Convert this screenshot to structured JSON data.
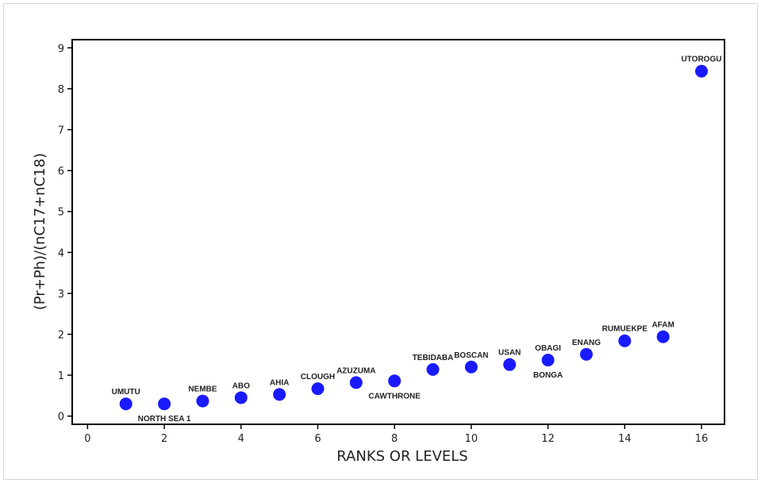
{
  "chart_data": {
    "type": "scatter",
    "xlabel": "RANKS OR LEVELS",
    "ylabel": "(Pr+Ph)/(nC17+nC18)",
    "xlim": [
      -0.4,
      16.6
    ],
    "ylim": [
      -0.2,
      9.2
    ],
    "xticks": [
      0,
      2,
      4,
      6,
      8,
      10,
      12,
      14,
      16
    ],
    "yticks": [
      0,
      1,
      2,
      3,
      4,
      5,
      6,
      7,
      8,
      9
    ],
    "grid": false,
    "marker_color": "#1a1aff",
    "points": [
      {
        "label": "UMUTU",
        "x": 1,
        "y": 0.3,
        "label_pos": "above"
      },
      {
        "label": "NORTH SEA 1",
        "x": 2,
        "y": 0.3,
        "label_pos": "below"
      },
      {
        "label": "NEMBE",
        "x": 3,
        "y": 0.37,
        "label_pos": "above"
      },
      {
        "label": "ABO",
        "x": 4,
        "y": 0.45,
        "label_pos": "above"
      },
      {
        "label": "AHIA",
        "x": 5,
        "y": 0.53,
        "label_pos": "above"
      },
      {
        "label": "CLOUGH",
        "x": 6,
        "y": 0.67,
        "label_pos": "above"
      },
      {
        "label": "AZUZUMA",
        "x": 7,
        "y": 0.82,
        "label_pos": "above"
      },
      {
        "label": "CAWTHRONE",
        "x": 8,
        "y": 0.86,
        "label_pos": "below"
      },
      {
        "label": "TEBIDABA",
        "x": 9,
        "y": 1.14,
        "label_pos": "above"
      },
      {
        "label": "BOSCAN",
        "x": 10,
        "y": 1.2,
        "label_pos": "above"
      },
      {
        "label": "USAN",
        "x": 11,
        "y": 1.26,
        "label_pos": "above"
      },
      {
        "label": "OBAGI",
        "x": 12,
        "y": 1.37,
        "label_pos": "above"
      },
      {
        "label": "BONGA",
        "x": 12,
        "y": 1.37,
        "label_pos": "below"
      },
      {
        "label": "ENANG",
        "x": 13,
        "y": 1.51,
        "label_pos": "above"
      },
      {
        "label": "RUMUEKPE",
        "x": 14,
        "y": 1.84,
        "label_pos": "above"
      },
      {
        "label": "AFAM",
        "x": 15,
        "y": 1.94,
        "label_pos": "above"
      },
      {
        "label": "UTOROGU",
        "x": 16,
        "y": 8.43,
        "label_pos": "above"
      }
    ]
  }
}
